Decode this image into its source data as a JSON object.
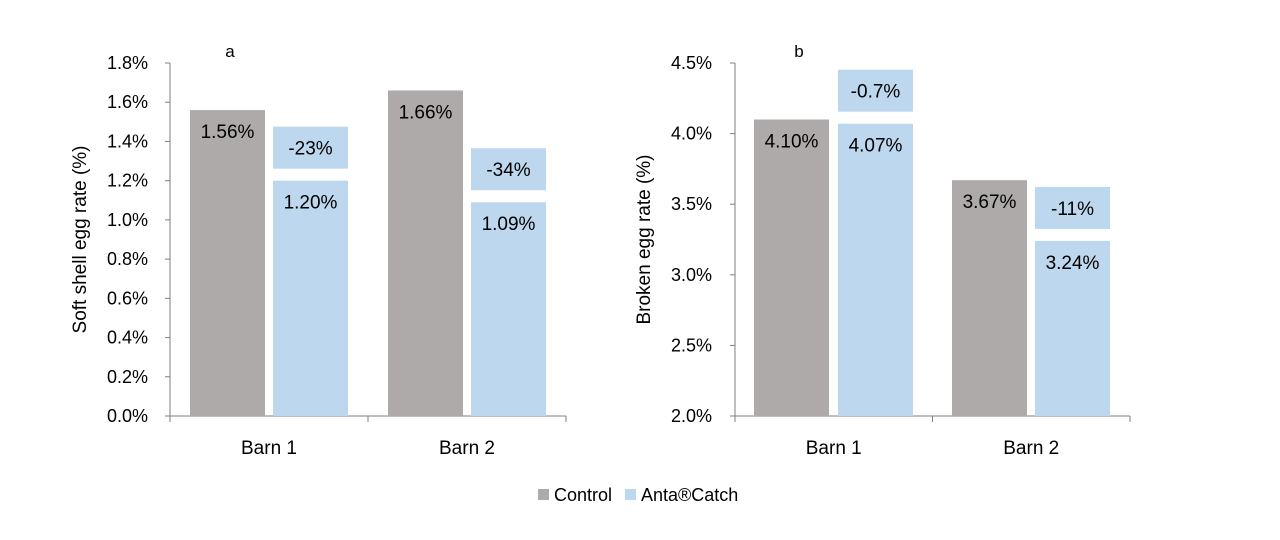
{
  "chart_data": [
    {
      "type": "bar",
      "panel": "a",
      "categories": [
        "Barn 1",
        "Barn 2"
      ],
      "series": [
        {
          "name": "Control",
          "values": [
            1.56,
            1.66
          ],
          "color": "#AEAAAA",
          "labels": [
            "1.56%",
            "1.66%"
          ]
        },
        {
          "name": "Anta®Catch",
          "values": [
            1.2,
            1.09
          ],
          "color": "#BDD7EE",
          "labels": [
            "1.20%",
            "1.09%"
          ]
        }
      ],
      "change_labels": [
        "-23%",
        "-34%"
      ],
      "ylabel": "Soft shell egg rate (%)",
      "ylim": [
        0,
        1.8
      ],
      "yticks": [
        0,
        0.2,
        0.4,
        0.6,
        0.8,
        1.0,
        1.2,
        1.4,
        1.6,
        1.8
      ],
      "ytick_labels": [
        "0.0%",
        "0.2%",
        "0.4%",
        "0.6%",
        "0.8%",
        "1.0%",
        "1.2%",
        "1.4%",
        "1.6%",
        "1.8%"
      ],
      "grid": false
    },
    {
      "type": "bar",
      "panel": "b",
      "categories": [
        "Barn 1",
        "Barn 2"
      ],
      "series": [
        {
          "name": "Control",
          "values": [
            4.1,
            3.67
          ],
          "color": "#AEAAAA",
          "labels": [
            "4.10%",
            "3.67%"
          ]
        },
        {
          "name": "Anta®Catch",
          "values": [
            4.07,
            3.24
          ],
          "color": "#BDD7EE",
          "labels": [
            "4.07%",
            "3.24%"
          ]
        }
      ],
      "change_labels": [
        "-0.7%",
        "-11%"
      ],
      "ylabel": "Broken egg rate (%)",
      "ylim": [
        2.0,
        4.5
      ],
      "yticks": [
        2.0,
        2.5,
        3.0,
        3.5,
        4.0,
        4.5
      ],
      "ytick_labels": [
        "2.0%",
        "2.5%",
        "3.0%",
        "3.5%",
        "4.0%",
        "4.5%"
      ],
      "grid": false
    }
  ],
  "legend": {
    "position": "bottom-center",
    "items": [
      {
        "label": "Control",
        "color": "#AEAAAA"
      },
      {
        "label": "Anta®Catch",
        "color": "#BDD7EE"
      }
    ]
  }
}
